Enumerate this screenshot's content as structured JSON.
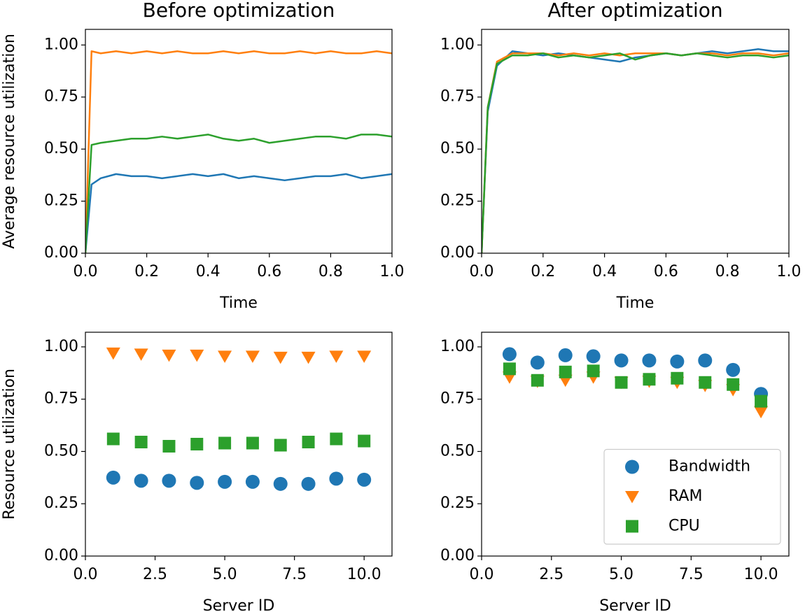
{
  "chart_data": [
    {
      "type": "line",
      "title": "Before optimization",
      "xlabel": "Time",
      "ylabel": "Average resource utilization",
      "ylabel_color": "#1f77b4",
      "x": [
        0,
        0.02,
        0.05,
        0.1,
        0.15,
        0.2,
        0.25,
        0.3,
        0.35,
        0.4,
        0.45,
        0.5,
        0.55,
        0.6,
        0.65,
        0.7,
        0.75,
        0.8,
        0.85,
        0.9,
        0.95,
        1.0
      ],
      "series": [
        {
          "color": "#1f77b4",
          "values": [
            0,
            0.33,
            0.36,
            0.38,
            0.37,
            0.37,
            0.36,
            0.37,
            0.38,
            0.37,
            0.38,
            0.36,
            0.37,
            0.36,
            0.35,
            0.36,
            0.37,
            0.37,
            0.38,
            0.36,
            0.37,
            0.38
          ]
        },
        {
          "color": "#ff7f0e",
          "values": [
            0,
            0.97,
            0.96,
            0.97,
            0.96,
            0.97,
            0.96,
            0.97,
            0.96,
            0.96,
            0.97,
            0.96,
            0.97,
            0.96,
            0.96,
            0.97,
            0.96,
            0.97,
            0.96,
            0.96,
            0.97,
            0.96
          ]
        },
        {
          "color": "#2ca02c",
          "values": [
            0,
            0.52,
            0.53,
            0.54,
            0.55,
            0.55,
            0.56,
            0.55,
            0.56,
            0.57,
            0.55,
            0.54,
            0.55,
            0.53,
            0.54,
            0.55,
            0.56,
            0.56,
            0.55,
            0.57,
            0.57,
            0.56
          ]
        }
      ],
      "xlim": [
        0,
        1
      ],
      "ylim": [
        0,
        1.075
      ],
      "xticks": [
        {
          "value": 0,
          "label": "0.0"
        },
        {
          "value": 0.2,
          "label": "0.2"
        },
        {
          "value": 0.4,
          "label": "0.4"
        },
        {
          "value": 0.6,
          "label": "0.6"
        },
        {
          "value": 0.8,
          "label": "0.8"
        },
        {
          "value": 1,
          "label": "1.0"
        }
      ],
      "yticks": [
        {
          "value": 0,
          "label": "0.00"
        },
        {
          "value": 0.25,
          "label": "0.25"
        },
        {
          "value": 0.5,
          "label": "0.50"
        },
        {
          "value": 0.75,
          "label": "0.75"
        },
        {
          "value": 1,
          "label": "1.00"
        }
      ]
    },
    {
      "type": "line",
      "title": "After optimization",
      "xlabel": "Time",
      "x": [
        0,
        0.02,
        0.05,
        0.1,
        0.15,
        0.2,
        0.25,
        0.3,
        0.35,
        0.4,
        0.45,
        0.5,
        0.55,
        0.6,
        0.65,
        0.7,
        0.75,
        0.8,
        0.85,
        0.9,
        0.95,
        1.0
      ],
      "series": [
        {
          "color": "#1f77b4",
          "values": [
            0,
            0.68,
            0.9,
            0.97,
            0.96,
            0.95,
            0.96,
            0.95,
            0.94,
            0.93,
            0.92,
            0.94,
            0.95,
            0.96,
            0.95,
            0.96,
            0.97,
            0.96,
            0.97,
            0.98,
            0.97,
            0.97
          ]
        },
        {
          "color": "#ff7f0e",
          "values": [
            0,
            0.7,
            0.92,
            0.96,
            0.96,
            0.96,
            0.95,
            0.96,
            0.95,
            0.96,
            0.95,
            0.96,
            0.96,
            0.96,
            0.95,
            0.96,
            0.96,
            0.95,
            0.96,
            0.96,
            0.95,
            0.96
          ]
        },
        {
          "color": "#2ca02c",
          "values": [
            0,
            0.7,
            0.91,
            0.95,
            0.95,
            0.96,
            0.94,
            0.95,
            0.94,
            0.95,
            0.96,
            0.93,
            0.95,
            0.96,
            0.95,
            0.96,
            0.95,
            0.94,
            0.95,
            0.95,
            0.94,
            0.95
          ]
        }
      ],
      "xlim": [
        0,
        1
      ],
      "ylim": [
        0,
        1.075
      ],
      "xticks": [
        {
          "value": 0,
          "label": "0.0"
        },
        {
          "value": 0.2,
          "label": "0.2"
        },
        {
          "value": 0.4,
          "label": "0.4"
        },
        {
          "value": 0.6,
          "label": "0.6"
        },
        {
          "value": 0.8,
          "label": "0.8"
        },
        {
          "value": 1,
          "label": "1.0"
        }
      ],
      "yticks": [
        {
          "value": 0,
          "label": "0.00"
        },
        {
          "value": 0.25,
          "label": "0.25"
        },
        {
          "value": 0.5,
          "label": "0.50"
        },
        {
          "value": 0.75,
          "label": "0.75"
        },
        {
          "value": 1,
          "label": "1.00"
        }
      ]
    },
    {
      "type": "scatter",
      "xlabel": "Server ID",
      "ylabel": "Resource utilization",
      "ylabel_color": "#1f77b4",
      "x": [
        1,
        2,
        3,
        4,
        5,
        6,
        7,
        8,
        9,
        10
      ],
      "series": [
        {
          "color": "#1f77b4",
          "marker": "circle",
          "values": [
            0.375,
            0.36,
            0.36,
            0.35,
            0.355,
            0.355,
            0.345,
            0.345,
            0.37,
            0.365
          ]
        },
        {
          "color": "#ff7f0e",
          "marker": "triangle-down",
          "values": [
            0.97,
            0.965,
            0.96,
            0.96,
            0.955,
            0.955,
            0.95,
            0.95,
            0.955,
            0.955
          ]
        },
        {
          "color": "#2ca02c",
          "marker": "square",
          "values": [
            0.56,
            0.545,
            0.525,
            0.535,
            0.54,
            0.54,
            0.53,
            0.545,
            0.56,
            0.55
          ]
        }
      ],
      "xlim": [
        0,
        11
      ],
      "ylim": [
        0,
        1.07
      ],
      "xticks": [
        {
          "value": 0,
          "label": "0.0"
        },
        {
          "value": 2.5,
          "label": "2.5"
        },
        {
          "value": 5,
          "label": "5.0"
        },
        {
          "value": 7.5,
          "label": "7.5"
        },
        {
          "value": 10,
          "label": "10.0"
        }
      ],
      "yticks": [
        {
          "value": 0,
          "label": "0.00"
        },
        {
          "value": 0.25,
          "label": "0.25"
        },
        {
          "value": 0.5,
          "label": "0.50"
        },
        {
          "value": 0.75,
          "label": "0.75"
        },
        {
          "value": 1,
          "label": "1.00"
        }
      ]
    },
    {
      "type": "scatter",
      "xlabel": "Server ID",
      "legend": "lower right",
      "x": [
        1,
        2,
        3,
        4,
        5,
        6,
        7,
        8,
        9,
        10
      ],
      "series": [
        {
          "name": "Bandwidth",
          "color": "#1f77b4",
          "marker": "circle",
          "values": [
            0.965,
            0.925,
            0.96,
            0.955,
            0.935,
            0.935,
            0.93,
            0.935,
            0.89,
            0.775
          ]
        },
        {
          "name": "RAM",
          "color": "#ff7f0e",
          "marker": "triangle-down",
          "values": [
            0.855,
            0.835,
            0.84,
            0.855,
            0.83,
            0.835,
            0.83,
            0.815,
            0.795,
            0.69
          ]
        },
        {
          "name": "CPU",
          "color": "#2ca02c",
          "marker": "square",
          "values": [
            0.895,
            0.84,
            0.88,
            0.885,
            0.83,
            0.845,
            0.85,
            0.83,
            0.82,
            0.74
          ]
        }
      ],
      "xlim": [
        0,
        11
      ],
      "ylim": [
        0,
        1.07
      ],
      "xticks": [
        {
          "value": 0,
          "label": "0.0"
        },
        {
          "value": 2.5,
          "label": "2.5"
        },
        {
          "value": 5,
          "label": "5.0"
        },
        {
          "value": 7.5,
          "label": "7.5"
        },
        {
          "value": 10,
          "label": "10.0"
        }
      ],
      "yticks": [
        {
          "value": 0,
          "label": "0.00"
        },
        {
          "value": 0.25,
          "label": "0.25"
        },
        {
          "value": 0.5,
          "label": "0.50"
        },
        {
          "value": 0.75,
          "label": "0.75"
        },
        {
          "value": 1,
          "label": "1.00"
        }
      ]
    }
  ]
}
